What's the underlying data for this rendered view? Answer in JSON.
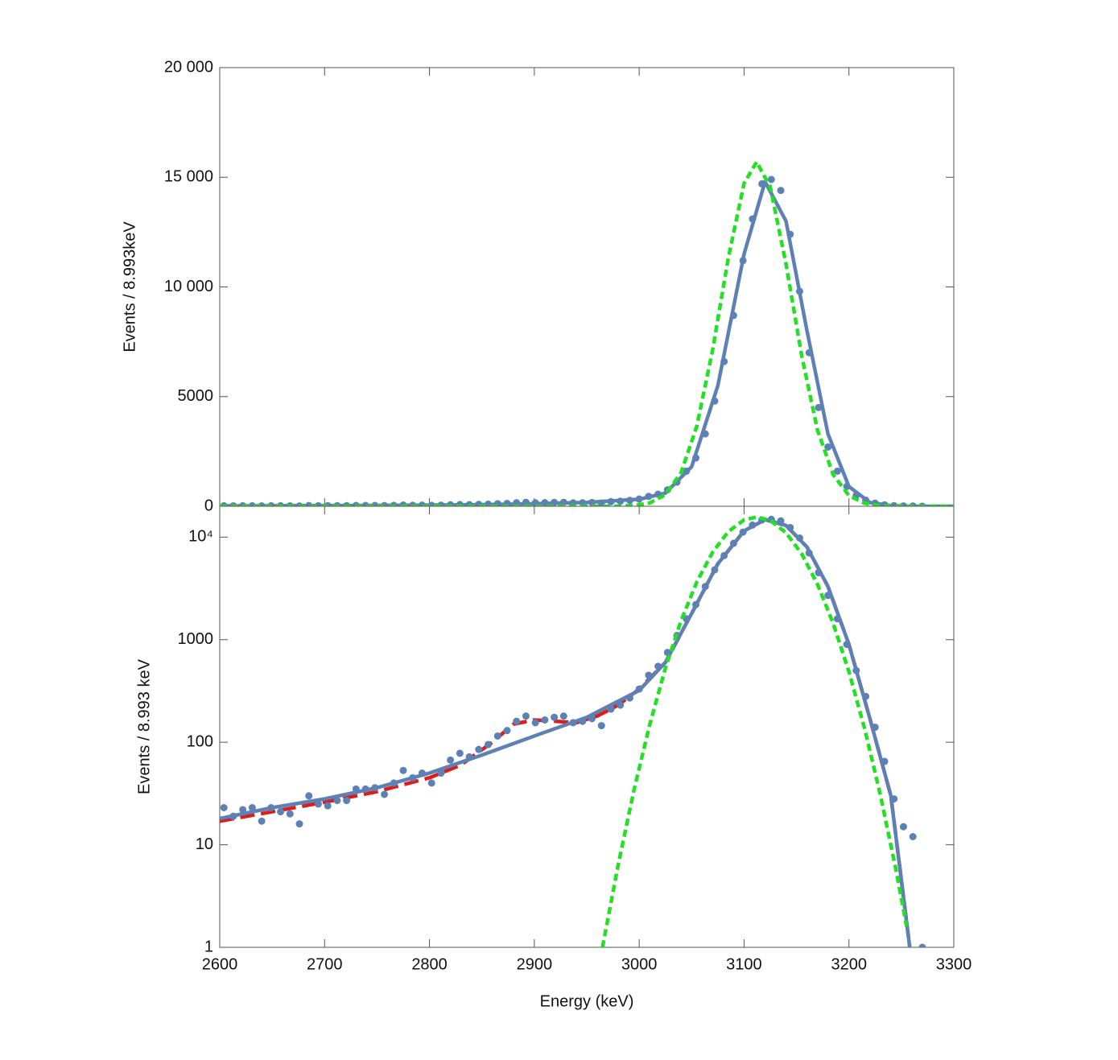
{
  "chart_data": [
    {
      "type": "scatter",
      "ylabel": "Events / 8.993keV",
      "xlim": [
        2600,
        3300
      ],
      "xticks": [
        2600,
        2700,
        2800,
        2900,
        3000,
        3100,
        3200,
        3300
      ],
      "ylim": [
        0,
        20000
      ],
      "yticks": [
        0,
        5000,
        {
          "value": 10000,
          "label": "10 000"
        },
        {
          "value": 15000,
          "label": "15 000"
        },
        {
          "value": 20000,
          "label": "20 000"
        }
      ],
      "log": false,
      "series": [
        {
          "style": "points",
          "color": "#5e81b5",
          "x": [
            2604,
            2613,
            2622,
            2631,
            2640,
            2649,
            2658,
            2667,
            2676,
            2685,
            2694,
            2703,
            2712,
            2721,
            2730,
            2739,
            2748,
            2757,
            2766,
            2775,
            2784,
            2793,
            2802,
            2811,
            2820,
            2829,
            2838,
            2847,
            2856,
            2865,
            2874,
            2883,
            2892,
            2901,
            2910,
            2919,
            2928,
            2937,
            2946,
            2955,
            2964,
            2973,
            2982,
            2991,
            3000,
            3009,
            3018,
            3027,
            3036,
            3045,
            3054,
            3063,
            3072,
            3081,
            3090,
            3099,
            3108,
            3117,
            3126,
            3135,
            3144,
            3153,
            3162,
            3171,
            3180,
            3189,
            3198,
            3207,
            3216,
            3225,
            3234,
            3243,
            3252,
            3261,
            3270
          ],
          "values": [
            23,
            19,
            22,
            23,
            17,
            23,
            21,
            20,
            16,
            30,
            25,
            24,
            27,
            27,
            35,
            35,
            36,
            31,
            40,
            53,
            45,
            50,
            40,
            50,
            67,
            78,
            72,
            85,
            95,
            115,
            130,
            160,
            180,
            155,
            165,
            175,
            180,
            155,
            160,
            170,
            145,
            210,
            230,
            270,
            330,
            450,
            550,
            750,
            1100,
            1600,
            2200,
            3300,
            4800,
            6600,
            8700,
            11200,
            13100,
            14700,
            14900,
            14400,
            12400,
            9800,
            7000,
            4500,
            2700,
            1600,
            900,
            500,
            280,
            140,
            65,
            28,
            15,
            12,
            1
          ]
        },
        {
          "style": "solid",
          "color": "#5e81b5",
          "x": [
            2600,
            2650,
            2700,
            2750,
            2800,
            2850,
            2900,
            2950,
            3000,
            3025,
            3050,
            3075,
            3100,
            3120,
            3140,
            3160,
            3180,
            3200,
            3220,
            3240,
            3258,
            3300
          ],
          "values": [
            18,
            23,
            28,
            36,
            50,
            75,
            115,
            175,
            320,
            600,
            1800,
            5500,
            11500,
            14800,
            13000,
            8000,
            3300,
            900,
            170,
            30,
            1,
            0
          ]
        },
        {
          "style": "dotted",
          "color": "#22e022",
          "x": [
            2600,
            2965,
            2980,
            2995,
            3010,
            3025,
            3040,
            3055,
            3070,
            3085,
            3100,
            3112,
            3125,
            3140,
            3155,
            3170,
            3185,
            3200,
            3215,
            3230,
            3245,
            3255,
            3300
          ],
          "values": [
            0,
            1,
            6.4,
            34,
            148,
            527,
            1537,
            3661,
            7118,
            11324,
            14719,
            15700,
            14555,
            11051,
            6856,
            3474,
            1440,
            488,
            135,
            30.6,
            5.6,
            1.6,
            0
          ]
        }
      ]
    },
    {
      "type": "scatter",
      "ylabel": "Events / 8.993 keV",
      "xlabel": "Energy (keV)",
      "xlim": [
        2600,
        3300
      ],
      "xticks": [
        2600,
        2700,
        2800,
        2900,
        3000,
        3100,
        3200,
        3300
      ],
      "ylim": [
        1,
        20000
      ],
      "yticks": [
        1,
        10,
        100,
        1000,
        {
          "value": 10000,
          "label": "10⁴"
        }
      ],
      "log": true,
      "series": [
        {
          "style": "dashed",
          "color": "#dd1c1c",
          "x": [
            2600,
            2650,
            2700,
            2750,
            2800,
            2830,
            2860,
            2880,
            2900,
            2920,
            2940,
            2960,
            2980,
            3000,
            3025,
            3050,
            3075,
            3100,
            3120,
            3140,
            3160,
            3180,
            3200,
            3220,
            3240,
            3258
          ],
          "values": [
            17,
            21,
            26,
            33,
            45,
            60,
            100,
            150,
            165,
            160,
            155,
            180,
            230,
            330,
            600,
            1800,
            5500,
            11500,
            14800,
            13000,
            8000,
            3300,
            900,
            170,
            30,
            1
          ]
        },
        {
          "style": "solid",
          "color": "#5e81b5",
          "x": [
            2600,
            2650,
            2700,
            2750,
            2800,
            2850,
            2900,
            2950,
            3000,
            3025,
            3050,
            3075,
            3100,
            3120,
            3140,
            3160,
            3180,
            3200,
            3220,
            3240,
            3258
          ],
          "values": [
            18,
            23,
            28,
            36,
            50,
            75,
            115,
            175,
            320,
            600,
            1800,
            5500,
            11500,
            14800,
            13000,
            8000,
            3300,
            900,
            170,
            30,
            1
          ]
        },
        {
          "style": "points",
          "color": "#5e81b5",
          "x": [
            2604,
            2613,
            2622,
            2631,
            2640,
            2649,
            2658,
            2667,
            2676,
            2685,
            2694,
            2703,
            2712,
            2721,
            2730,
            2739,
            2748,
            2757,
            2766,
            2775,
            2784,
            2793,
            2802,
            2811,
            2820,
            2829,
            2838,
            2847,
            2856,
            2865,
            2874,
            2883,
            2892,
            2901,
            2910,
            2919,
            2928,
            2937,
            2946,
            2955,
            2964,
            2973,
            2982,
            2991,
            3000,
            3009,
            3018,
            3027,
            3036,
            3045,
            3054,
            3063,
            3072,
            3081,
            3090,
            3099,
            3108,
            3117,
            3126,
            3135,
            3144,
            3153,
            3162,
            3171,
            3180,
            3189,
            3198,
            3207,
            3216,
            3225,
            3234,
            3243,
            3252,
            3261,
            3270
          ],
          "values": [
            23,
            19,
            22,
            23,
            17,
            23,
            21,
            20,
            16,
            30,
            25,
            24,
            27,
            27,
            35,
            35,
            36,
            31,
            40,
            53,
            45,
            50,
            40,
            50,
            67,
            78,
            72,
            85,
            95,
            115,
            130,
            160,
            180,
            155,
            165,
            175,
            180,
            155,
            160,
            170,
            145,
            210,
            230,
            270,
            330,
            450,
            550,
            750,
            1100,
            1600,
            2200,
            3300,
            4800,
            6600,
            8700,
            11200,
            13100,
            14700,
            14900,
            14400,
            12400,
            9800,
            7000,
            4500,
            2700,
            1600,
            900,
            500,
            280,
            140,
            65,
            28,
            15,
            12,
            1
          ]
        },
        {
          "style": "dotted",
          "color": "#22e022",
          "x": [
            2965,
            2980,
            2995,
            3010,
            3025,
            3040,
            3055,
            3070,
            3085,
            3100,
            3112,
            3125,
            3140,
            3155,
            3170,
            3185,
            3200,
            3215,
            3230,
            3245,
            3255
          ],
          "values": [
            1,
            6.4,
            34,
            148,
            527,
            1537,
            3661,
            7118,
            11324,
            14719,
            15700,
            14555,
            11051,
            6856,
            3474,
            1440,
            488,
            135,
            30.6,
            5.6,
            1.6
          ]
        }
      ]
    }
  ]
}
